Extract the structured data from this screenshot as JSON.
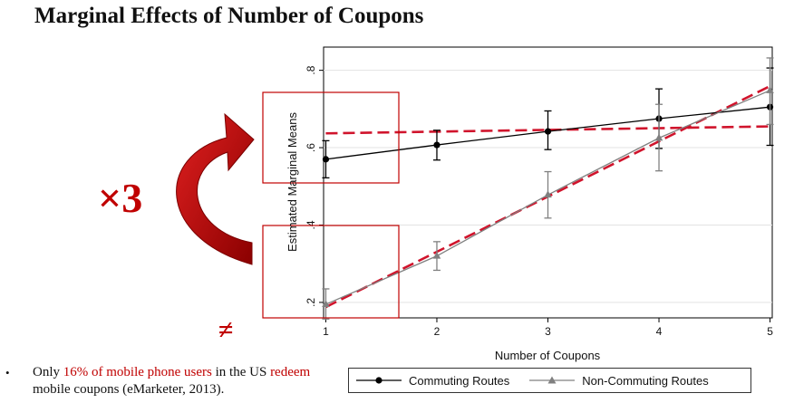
{
  "slide": {
    "title": "Marginal Effects of Number of Coupons",
    "multiplier": "×3",
    "not_equal": "≠",
    "bullet": {
      "pre": "Only ",
      "hl1": "16% of mobile phone users",
      "mid": " in the US ",
      "hl2": "redeem",
      "post": " mobile coupons (eMarketer, 2013)."
    }
  },
  "colors": {
    "commuting": "#000000",
    "non_commuting": "#808080",
    "fit_line": "#d0142c",
    "highlight": "#c00000"
  },
  "chart_data": {
    "type": "line",
    "xlabel": "Number of Coupons",
    "ylabel": "Estimated Marginal Means",
    "x": [
      1,
      2,
      3,
      4,
      5
    ],
    "xticks": [
      "1",
      "2",
      "3",
      "4",
      "5"
    ],
    "yticks": [
      0.2,
      0.4,
      0.6,
      0.8
    ],
    "ytick_labels": [
      ".2",
      ".4",
      ".6",
      ".8"
    ],
    "xlim": [
      0.98,
      5.02
    ],
    "ylim": [
      0.16,
      0.86
    ],
    "grid": true,
    "legend_position": "bottom",
    "series": [
      {
        "name": "Commuting Routes",
        "values": [
          0.57,
          0.607,
          0.642,
          0.675,
          0.705
        ],
        "ci_low": [
          0.522,
          0.568,
          0.595,
          0.598,
          0.606
        ],
        "ci_high": [
          0.618,
          0.645,
          0.695,
          0.752,
          0.806
        ],
        "marker": "circle"
      },
      {
        "name": "Non-Commuting Routes",
        "values": [
          0.195,
          0.32,
          0.478,
          0.625,
          0.748
        ],
        "ci_low": [
          0.157,
          0.283,
          0.418,
          0.54,
          0.66
        ],
        "ci_high": [
          0.235,
          0.357,
          0.538,
          0.712,
          0.832
        ],
        "marker": "triangle"
      }
    ],
    "fit_lines": [
      {
        "from": [
          1,
          0.637
        ],
        "to": [
          5.02,
          0.655
        ]
      },
      {
        "from": [
          1,
          0.188
        ],
        "to": [
          5.02,
          0.762
        ]
      }
    ]
  }
}
